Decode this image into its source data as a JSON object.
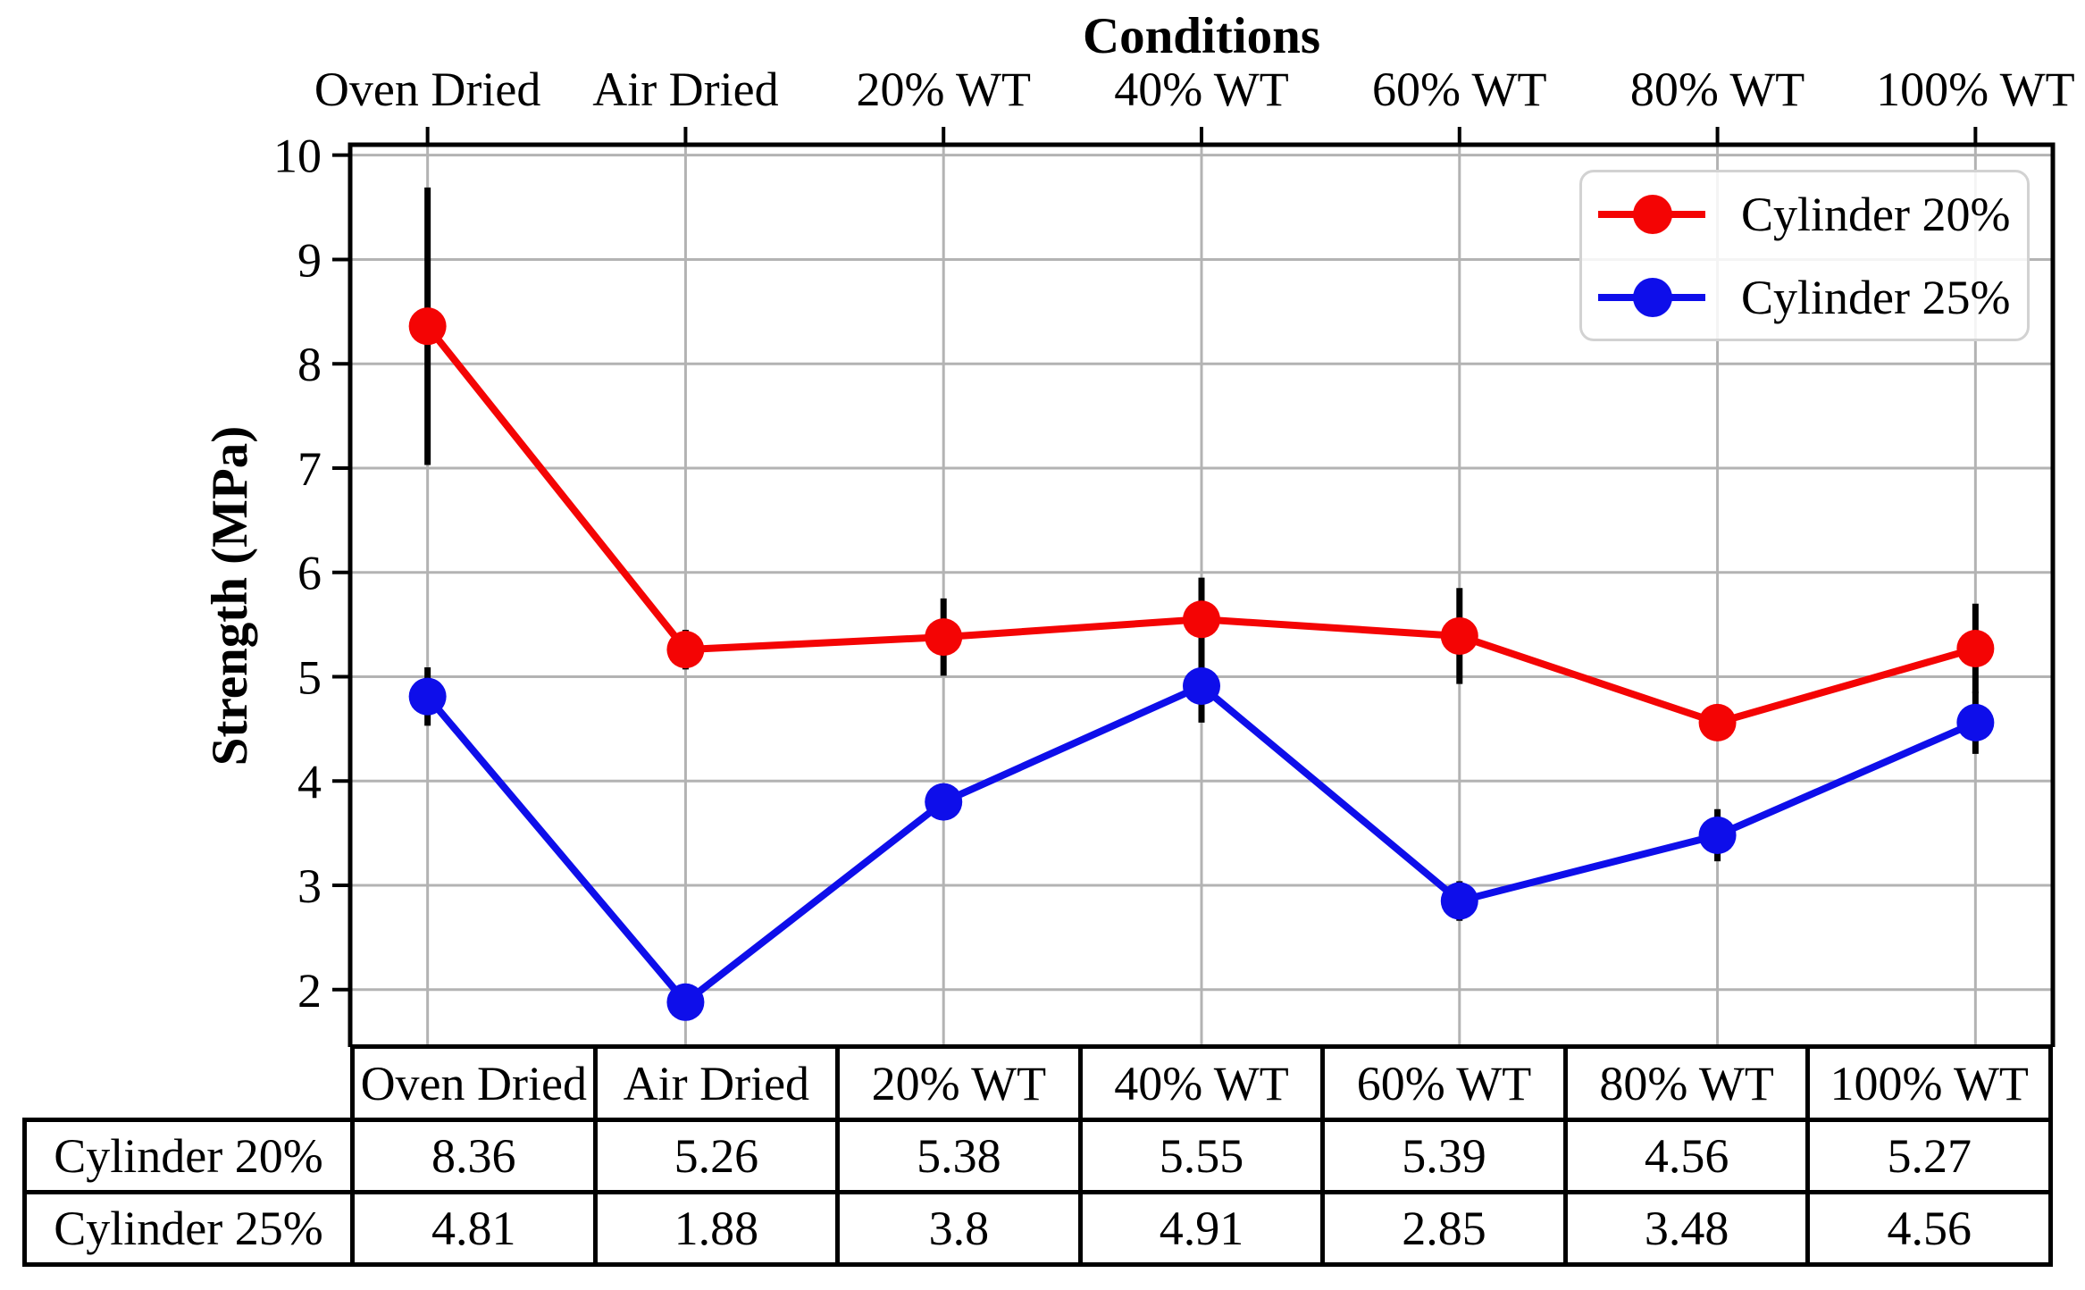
{
  "chart_data": {
    "type": "line",
    "title": "Conditions",
    "title_position": "top",
    "ylabel": "Strength (MPa)",
    "categories": [
      "Oven Dried",
      "Air Dried",
      "20% WT",
      "40% WT",
      "60% WT",
      "80% WT",
      "100% WT"
    ],
    "yticks": [
      2,
      3,
      4,
      5,
      6,
      7,
      8,
      9,
      10
    ],
    "ylim": [
      1.45,
      10.1
    ],
    "grid": true,
    "legend_position": "upper right",
    "marker": "circle",
    "error_bars": true,
    "series": [
      {
        "name": "Cylinder 20%",
        "color": "#f40404",
        "values": [
          8.36,
          5.26,
          5.38,
          5.55,
          5.39,
          4.56,
          5.27
        ],
        "errors": [
          1.33,
          0.19,
          0.37,
          0.4,
          0.46,
          0.17,
          0.43
        ]
      },
      {
        "name": "Cylinder 25%",
        "color": "#0e0eea",
        "values": [
          4.81,
          1.88,
          3.8,
          4.91,
          2.85,
          3.48,
          4.56
        ],
        "errors": [
          0.28,
          0.04,
          0.04,
          0.35,
          0.19,
          0.25,
          0.3
        ]
      }
    ],
    "table": {
      "col_headers": [
        "Oven Dried",
        "Air Dried",
        "20% WT",
        "40% WT",
        "60% WT",
        "80% WT",
        "100% WT"
      ],
      "rows": [
        {
          "label": "Cylinder 20%",
          "values": [
            "8.36",
            "5.26",
            "5.38",
            "5.55",
            "5.39",
            "4.56",
            "5.27"
          ]
        },
        {
          "label": "Cylinder 25%",
          "values": [
            "4.81",
            "1.88",
            "3.8",
            "4.91",
            "2.85",
            "3.48",
            "4.56"
          ]
        }
      ]
    },
    "style": {
      "axis_color": "#000000",
      "grid_color": "#b3b3b3",
      "error_bar_color": "#000000",
      "legend_border_color": "#d2d2d2"
    }
  }
}
